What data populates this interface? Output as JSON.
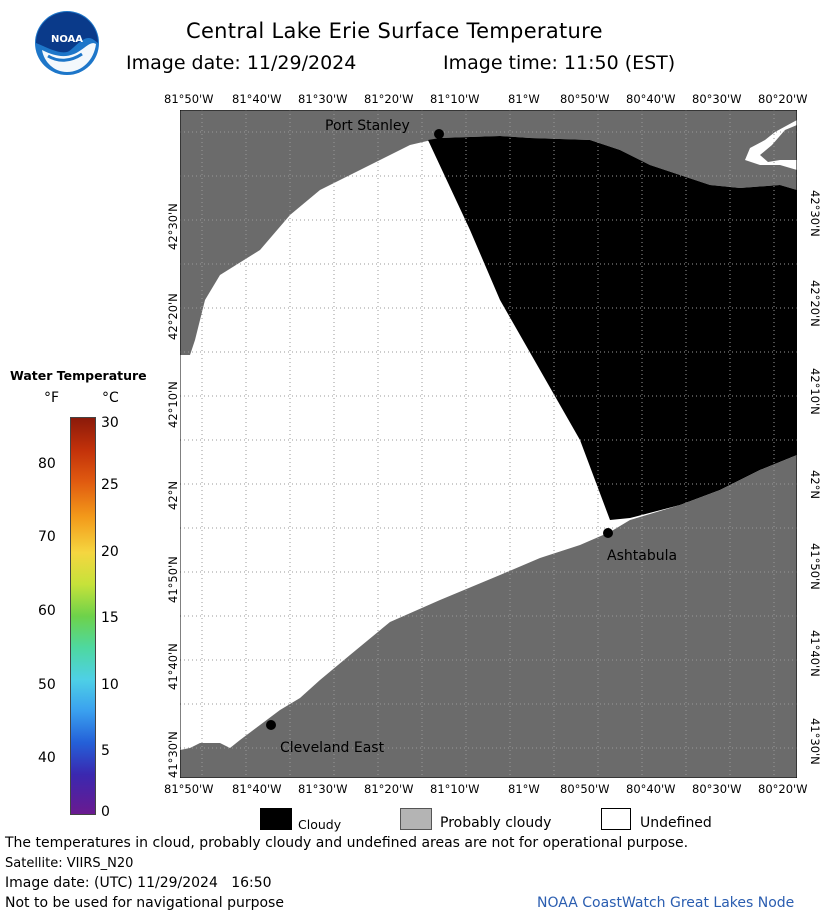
{
  "header": {
    "title": "Central Lake Erie Surface Temperature",
    "image_date": "Image date: 11/29/2024",
    "image_time": "Image time: 11:50 (EST)"
  },
  "logo": {
    "text": "NOAA",
    "colors": {
      "blue": "#1d76c9",
      "dark": "#0a3a8a"
    }
  },
  "map": {
    "lon_labels": [
      "81°50'W",
      "81°40'W",
      "81°30'W",
      "81°20'W",
      "81°10'W",
      "81°W",
      "80°50'W",
      "80°40'W",
      "80°30'W",
      "80°20'W"
    ],
    "lat_labels": [
      "42°30'N",
      "42°20'N",
      "42°10'N",
      "42°N",
      "41°50'N",
      "41°40'N",
      "41°30'N"
    ],
    "places": {
      "port_stanley": "Port Stanley",
      "ashtabula": "Ashtabula",
      "cleveland_east": "Cleveland East"
    },
    "colors": {
      "land": "#6b6b6b",
      "cloud": "#000000",
      "undefined": "#ffffff",
      "grid": "#9a9a9a"
    }
  },
  "temperature_legend": {
    "title": "Water Temperature",
    "f_unit": "°F",
    "c_unit": "°C",
    "f_ticks": [
      "80",
      "70",
      "60",
      "50",
      "40"
    ],
    "c_ticks": [
      "30",
      "25",
      "20",
      "15",
      "10",
      "5",
      "0"
    ]
  },
  "category_legend": {
    "cloudy": "Cloudy",
    "probably_cloudy": "Probably cloudy",
    "undefined": "Undefined"
  },
  "footer": {
    "warning": "The temperatures in cloud, probably cloudy and undefined areas are not for operational purpose.",
    "satellite": "Satellite: VIIRS_N20",
    "utc_date": "Image date: (UTC) 11/29/2024   16:50",
    "navigation": "Not to be used for navigational purpose",
    "credit": "NOAA CoastWatch Great Lakes Node"
  }
}
